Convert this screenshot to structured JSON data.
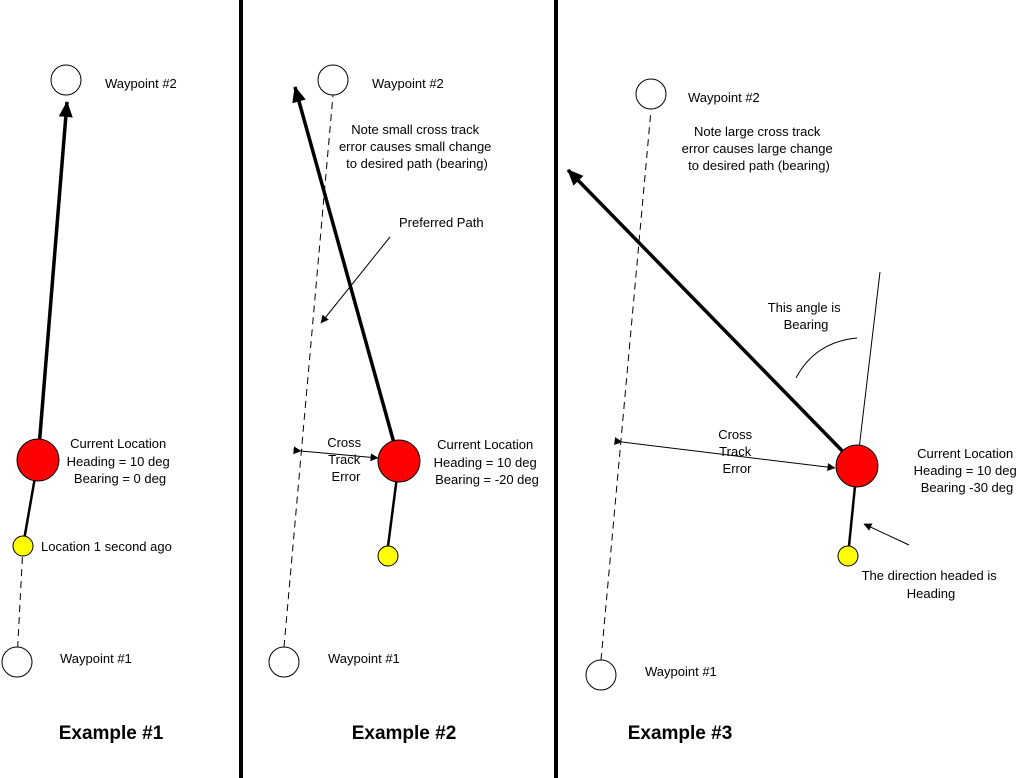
{
  "colors": {
    "current_location": "#ff0000",
    "previous_location": "#ffff00",
    "waypoint": "#ffffff",
    "lines": "#000000"
  },
  "example1": {
    "title": "Example #1",
    "waypoint2": "Waypoint #2",
    "waypoint1": "Waypoint #1",
    "current_location": [
      "Current Location",
      "Heading = 10 deg",
      "Bearing = 0 deg"
    ],
    "previous_location": "Location 1 second ago"
  },
  "example2": {
    "title": "Example #2",
    "waypoint2": "Waypoint #2",
    "waypoint1": "Waypoint #1",
    "note": [
      "Note small cross track",
      "error causes small change",
      "to desired path (bearing)"
    ],
    "preferred_path": "Preferred Path",
    "cross_track": [
      "Cross",
      "Track",
      "Error"
    ],
    "current_location": [
      "Current Location",
      "Heading = 10 deg",
      "Bearing = -20 deg"
    ]
  },
  "example3": {
    "title": "Example #3",
    "waypoint2": "Waypoint #2",
    "waypoint1": "Waypoint #1",
    "note": [
      "Note large cross track",
      "error causes large change",
      "to desired path (bearing)"
    ],
    "bearing_angle": [
      "This angle is",
      "Bearing"
    ],
    "cross_track": [
      "Cross",
      "Track",
      "Error"
    ],
    "current_location": [
      "Current Location",
      "Heading = 10 deg",
      "Bearing -30 deg"
    ],
    "heading_note": [
      "The direction headed is",
      "Heading"
    ]
  }
}
